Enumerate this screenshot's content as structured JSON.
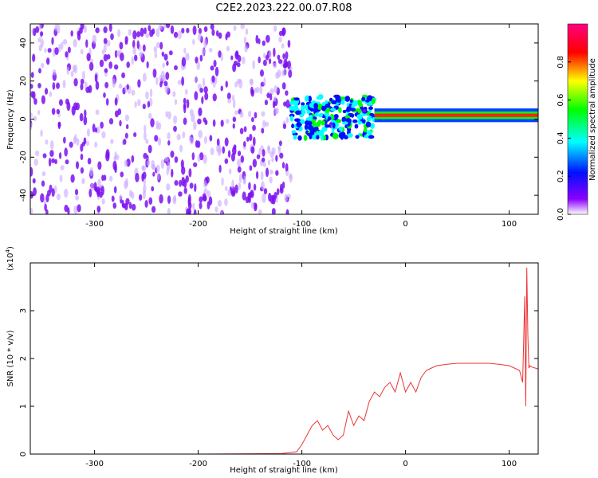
{
  "title": "C2E2.2023.222.00.07.R08",
  "chart_data": [
    {
      "type": "heatmap",
      "xlabel": "Height of straight line (km)",
      "ylabel": "Frequency (Hz)",
      "xlim": [
        -362,
        128
      ],
      "ylim": [
        -50,
        50
      ],
      "xticks": [
        -300,
        -200,
        -100,
        0,
        100
      ],
      "yticks": [
        -40,
        -20,
        0,
        20,
        40
      ],
      "colorbar": {
        "label": "Normalized spectral amplitude",
        "range": [
          0.0,
          1.0
        ],
        "ticks": [
          0.0,
          0.2,
          0.4,
          0.6,
          0.8
        ],
        "colors": [
          "#ffffff",
          "#8a00ff",
          "#0010ff",
          "#00ffff",
          "#00ff00",
          "#ffff00",
          "#ff0000",
          "#ff0080"
        ]
      },
      "regions": [
        {
          "x_range": [
            -362,
            -110
          ],
          "freq_range": [
            -50,
            50
          ],
          "amplitude": 0.1,
          "description": "broadband noise"
        },
        {
          "x_range": [
            -110,
            -30
          ],
          "freq_range": [
            -10,
            12
          ],
          "amplitude": 0.35
        },
        {
          "x_range": [
            -30,
            128
          ],
          "freq_center": 2,
          "freq_halfwidth": 2,
          "amplitude": 0.9
        }
      ]
    },
    {
      "type": "line",
      "xlabel": "Height of straight line (km)",
      "ylabel": "SNR (10 * v/v)",
      "y_multiplier_label": "(x10",
      "y_multiplier_exp": "4",
      "y_multiplier_close": ")",
      "xlim": [
        -362,
        128
      ],
      "ylim": [
        0,
        4
      ],
      "xticks": [
        -300,
        -200,
        -100,
        0,
        100
      ],
      "yticks": [
        0,
        1,
        2,
        3
      ],
      "series": [
        {
          "color": "#ee3333",
          "x": [
            -362,
            -300,
            -200,
            -120,
            -105,
            -100,
            -95,
            -90,
            -85,
            -80,
            -75,
            -70,
            -65,
            -60,
            -55,
            -50,
            -45,
            -40,
            -35,
            -30,
            -25,
            -20,
            -15,
            -10,
            -5,
            0,
            5,
            10,
            15,
            20,
            25,
            30,
            40,
            50,
            60,
            70,
            80,
            90,
            100,
            105,
            110,
            113,
            115,
            116,
            117,
            118,
            119,
            120,
            122,
            125,
            128
          ],
          "y": [
            0.0,
            0.0,
            0.0,
            0.01,
            0.05,
            0.2,
            0.4,
            0.6,
            0.7,
            0.5,
            0.6,
            0.4,
            0.3,
            0.4,
            0.9,
            0.6,
            0.8,
            0.7,
            1.1,
            1.3,
            1.2,
            1.4,
            1.5,
            1.3,
            1.7,
            1.3,
            1.5,
            1.3,
            1.6,
            1.75,
            1.8,
            1.85,
            1.88,
            1.9,
            1.9,
            1.9,
            1.9,
            1.88,
            1.85,
            1.8,
            1.75,
            1.5,
            3.3,
            1.0,
            3.9,
            2.5,
            1.8,
            1.85,
            1.82,
            1.8,
            1.78
          ]
        }
      ]
    }
  ]
}
